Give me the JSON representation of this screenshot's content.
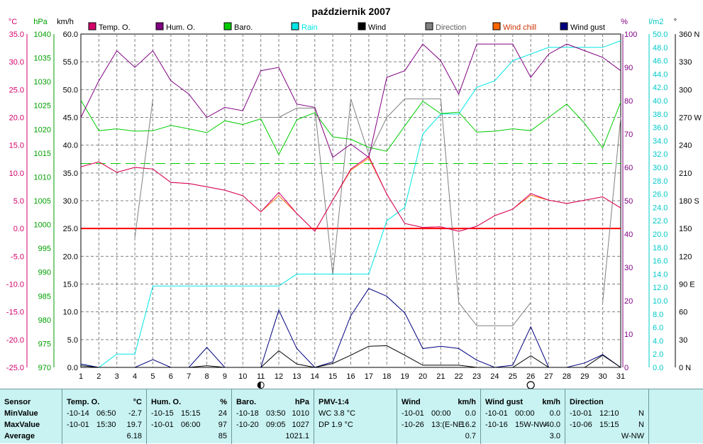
{
  "chart_data": {
    "type": "line",
    "title": "październik 2007",
    "x": [
      1,
      2,
      3,
      4,
      5,
      6,
      7,
      8,
      9,
      10,
      11,
      12,
      13,
      14,
      15,
      16,
      17,
      18,
      19,
      20,
      21,
      22,
      23,
      24,
      25,
      26,
      27,
      28,
      29,
      30,
      31
    ],
    "legend": [
      {
        "key": "temp",
        "label": "Temp. O.",
        "color": "#d4006a"
      },
      {
        "key": "hum",
        "label": "Hum. O.",
        "color": "#800080"
      },
      {
        "key": "baro",
        "label": "Baro.",
        "color": "#00cc00"
      },
      {
        "key": "rain",
        "label": "Rain",
        "color": "#00e5e5"
      },
      {
        "key": "wind",
        "label": "Wind",
        "color": "#000000"
      },
      {
        "key": "direction",
        "label": "Direction",
        "color": "#808080"
      },
      {
        "key": "windchill",
        "label": "Wind chill",
        "color": "#ff6600"
      },
      {
        "key": "windgust",
        "label": "Wind gust",
        "color": "#000080"
      }
    ],
    "axes": {
      "temp": {
        "unit": "°C",
        "min": -25,
        "max": 35,
        "ticks": [
          "35.0",
          "30.0",
          "25.0",
          "20.0",
          "15.0",
          "10.0",
          "5.0",
          "0.0",
          "-5.0",
          "-10.0",
          "-15.0",
          "-20.0",
          "-25.0"
        ]
      },
      "baro": {
        "unit": "hPa",
        "min": 970,
        "max": 1040,
        "ticks": [
          "1040",
          "1035",
          "1030",
          "1025",
          "1020",
          "1015",
          "1010",
          "1005",
          "1000",
          "995",
          "990",
          "985",
          "980",
          "975",
          "970"
        ]
      },
      "wind": {
        "unit": "km/h",
        "min": 0,
        "max": 60,
        "ticks": [
          "60.0",
          "55.0",
          "50.0",
          "45.0",
          "40.0",
          "35.0",
          "30.0",
          "25.0",
          "20.0",
          "15.0",
          "10.0",
          "5.0",
          "0.0"
        ]
      },
      "hum": {
        "unit": "%",
        "min": 0,
        "max": 100,
        "ticks": [
          "100",
          "90",
          "80",
          "70",
          "60",
          "50",
          "40",
          "30",
          "20",
          "10",
          "0"
        ]
      },
      "rain": {
        "unit": "l/m2",
        "min": 0,
        "max": 50,
        "ticks": [
          "50.0",
          "48.0",
          "46.0",
          "44.0",
          "42.0",
          "40.0",
          "38.0",
          "36.0",
          "34.0",
          "32.0",
          "30.0",
          "28.0",
          "26.0",
          "24.0",
          "22.0",
          "20.0",
          "18.0",
          "16.0",
          "14.0",
          "12.0",
          "10.0",
          "8.0",
          "6.0",
          "4.0",
          "2.0",
          "0.0"
        ]
      },
      "direction": {
        "unit": "°",
        "min": 0,
        "max": 360,
        "ticks": [
          "360 N",
          "330",
          "300",
          "270 W",
          "240",
          "210",
          "180 S",
          "150",
          "120",
          "90 E",
          "60",
          "30",
          "0 N"
        ]
      }
    },
    "series": [
      {
        "key": "temp",
        "axis": "temp",
        "color": "#d4006a",
        "values": [
          11.1,
          12.0,
          10.1,
          11.0,
          10.7,
          8.3,
          8.1,
          7.5,
          6.9,
          5.9,
          3.0,
          6.5,
          2.7,
          -0.5,
          5.1,
          10.7,
          13.0,
          6.2,
          0.9,
          0.2,
          0.3,
          -0.5,
          0.4,
          2.3,
          3.5,
          6.3,
          5.1,
          4.5,
          5.1,
          5.7,
          3.7
        ]
      },
      {
        "key": "windchill",
        "axis": "temp",
        "color": "#ff6600",
        "values": [
          11.1,
          12.0,
          10.1,
          11.0,
          10.7,
          8.3,
          8.1,
          7.5,
          6.9,
          5.9,
          3.0,
          5.9,
          2.7,
          -0.5,
          5.1,
          10.5,
          12.7,
          6.2,
          0.9,
          0.2,
          0.3,
          -0.5,
          0.4,
          2.3,
          3.5,
          6.0,
          5.1,
          4.5,
          5.1,
          5.7,
          3.7
        ]
      },
      {
        "key": "hum",
        "axis": "hum",
        "color": "#800080",
        "values": [
          75,
          86,
          95,
          90,
          95,
          86,
          82,
          75,
          78,
          77,
          89,
          90,
          79,
          78,
          63,
          67,
          63,
          87,
          89,
          97,
          92,
          82,
          97,
          97,
          97,
          87,
          94,
          97,
          95,
          93,
          89
        ]
      },
      {
        "key": "baro",
        "axis": "baro",
        "color": "#00cc00",
        "values": [
          1026.1,
          1019.7,
          1020.1,
          1019.6,
          1019.7,
          1020.8,
          1020.1,
          1019.3,
          1021.8,
          1021.0,
          1022.2,
          1014.7,
          1022.0,
          1023.5,
          1018.4,
          1017.9,
          1016.2,
          1015.4,
          1020.7,
          1025.9,
          1023.3,
          1023.6,
          1019.4,
          1019.6,
          1020.1,
          1019.7,
          1022.5,
          1025.3,
          1021.2,
          1016.1,
          1025.7
        ]
      },
      {
        "key": "rain",
        "axis": "rain",
        "color": "#00e5e5",
        "values": [
          0.5,
          0,
          2,
          2,
          12.2,
          12.2,
          12.2,
          12.2,
          12.2,
          12.2,
          12.2,
          12.2,
          14,
          14,
          14,
          14,
          14,
          22,
          24,
          35,
          38,
          38,
          42,
          43,
          46,
          47,
          48,
          48,
          48,
          48,
          49
        ]
      },
      {
        "key": "wind",
        "axis": "wind",
        "color": "#000000",
        "values": [
          0.3,
          0,
          0,
          0,
          0,
          0,
          0,
          0.3,
          0,
          0,
          0,
          3.0,
          0.6,
          0,
          0.7,
          2.2,
          3.8,
          3.9,
          2.2,
          0.4,
          0.4,
          0.4,
          0,
          0,
          0,
          2.1,
          0,
          0,
          0,
          2.2,
          0
        ]
      },
      {
        "key": "windgust",
        "axis": "wind",
        "color": "#000080",
        "values": [
          0.6,
          0,
          0,
          0,
          1.4,
          0,
          0,
          3.6,
          0,
          0,
          0,
          10.3,
          3.4,
          0,
          1.0,
          9.3,
          14.2,
          12.8,
          9.8,
          3.4,
          3.8,
          3.4,
          1.3,
          0,
          0.4,
          7.3,
          0,
          0,
          0.8,
          2.3,
          0
        ]
      },
      {
        "key": "direction",
        "axis": "direction",
        "color": "#808080",
        "values": [
          270,
          null,
          null,
          140,
          290,
          null,
          null,
          null,
          null,
          null,
          270,
          270,
          280,
          280,
          100,
          290,
          230,
          270,
          290,
          290,
          290,
          70,
          45,
          45,
          45,
          70,
          null,
          null,
          null,
          70,
          270
        ]
      }
    ],
    "reference_lines": [
      {
        "axis": "temp",
        "value": 0,
        "color": "#ff0000",
        "style": "solid"
      },
      {
        "axis": "temp",
        "value": 11.7,
        "color": "#00cc00",
        "style": "dashed"
      }
    ],
    "moon": [
      {
        "day": 11,
        "phase": "new"
      },
      {
        "day": 26,
        "phase": "full"
      }
    ],
    "grid": true
  },
  "stats": [
    {
      "header": "Sensor",
      "unit": "",
      "rows": [
        {
          "label": "MinValue"
        },
        {
          "label": "MaxValue"
        },
        {
          "label": "Average"
        }
      ]
    },
    {
      "header": "Temp. O.",
      "unit": "°C",
      "rows": [
        {
          "date": "-10-14",
          "time": "06:50",
          "value": "-2.7"
        },
        {
          "date": "-10-01",
          "time": "15:30",
          "value": "19.7"
        },
        {
          "date": "",
          "time": "",
          "value": "6.18"
        }
      ]
    },
    {
      "header": "Hum. O.",
      "unit": "%",
      "rows": [
        {
          "date": "-10-15",
          "time": "15:15",
          "value": "24"
        },
        {
          "date": "-10-01",
          "time": "06:00",
          "value": "97"
        },
        {
          "date": "",
          "time": "",
          "value": "85"
        }
      ]
    },
    {
      "header": "Baro.",
      "unit": "hPa",
      "rows": [
        {
          "date": "-10-18",
          "time": "03:50",
          "value": "1010"
        },
        {
          "date": "-10-20",
          "time": "09:05",
          "value": "1027"
        },
        {
          "date": "",
          "time": "",
          "value": "1021.1"
        }
      ]
    },
    {
      "header": "PMV-1:4",
      "unit": "",
      "rows": [
        {
          "date": "WC 3.8 °C",
          "time": "",
          "value": ""
        },
        {
          "date": "DP 1.9 °C",
          "time": "",
          "value": ""
        },
        {
          "date": "",
          "time": "",
          "value": ""
        }
      ]
    },
    {
      "header": "Wind",
      "unit": "km/h",
      "rows": [
        {
          "date": "-10-01",
          "time": "00:00",
          "value": "0.0"
        },
        {
          "date": "-10-26",
          "time": "13:(E-NE",
          "value": "16.2"
        },
        {
          "date": "",
          "time": "",
          "value": "0.7"
        }
      ]
    },
    {
      "header": "Wind gust",
      "unit": "km/h",
      "rows": [
        {
          "date": "-10-01",
          "time": "00:00",
          "value": "0.0"
        },
        {
          "date": "-10-16",
          "time": "15W-NW",
          "value": "40.0"
        },
        {
          "date": "",
          "time": "",
          "value": "3.0"
        }
      ]
    },
    {
      "header": "Direction",
      "unit": "",
      "rows": [
        {
          "date": "-10-01",
          "time": "12:10",
          "value": "N"
        },
        {
          "date": "-10-06",
          "time": "15:15",
          "value": "N"
        },
        {
          "date": "",
          "time": "",
          "value": "W-NW"
        }
      ]
    }
  ]
}
